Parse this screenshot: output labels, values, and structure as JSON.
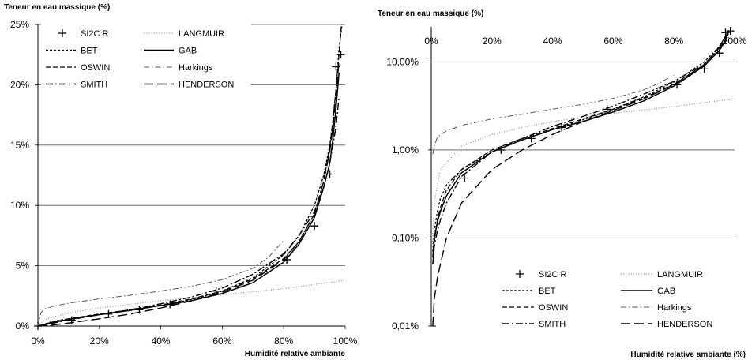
{
  "chart_data": [
    {
      "type": "line",
      "title": "",
      "ylabel": "Teneur en eau massique  (%)",
      "xlabel": "Humidité  relative ambiante",
      "x_ticks": [
        "0%",
        "20%",
        "40%",
        "60%",
        "80%",
        "100%"
      ],
      "y_ticks": [
        "0%",
        "5%",
        "10%",
        "15%",
        "20%",
        "25%"
      ],
      "xlim": [
        0,
        100
      ],
      "ylim": [
        0,
        25
      ],
      "yscale": "linear",
      "grid": "horizontal",
      "legend_position": "top-left",
      "legend": [
        {
          "name": "SI2C R",
          "style": "marker"
        },
        {
          "name": "LANGMUIR",
          "style": "dotted"
        },
        {
          "name": "BET",
          "style": "short-dash"
        },
        {
          "name": "GAB",
          "style": "solid"
        },
        {
          "name": "OSWIN",
          "style": "dash"
        },
        {
          "name": "Harkings",
          "style": "dash-dot-thin"
        },
        {
          "name": "SMITH",
          "style": "dash-dot"
        },
        {
          "name": "HENDERSON",
          "style": "long-dash"
        }
      ],
      "series": [
        {
          "name": "SI2C R",
          "style": "marker",
          "x": [
            0,
            11,
            23,
            33,
            43,
            58,
            81,
            90,
            95,
            97,
            98.6
          ],
          "y": [
            0,
            0.48,
            1.0,
            1.35,
            1.8,
            2.9,
            5.5,
            8.3,
            12.6,
            21.5,
            22.5
          ]
        },
        {
          "name": "LANGMUIR",
          "style": "dotted",
          "x": [
            0,
            1,
            3,
            10,
            20,
            30,
            40,
            50,
            60,
            70,
            80,
            90,
            100
          ],
          "y": [
            0,
            0.25,
            0.6,
            1.1,
            1.5,
            1.8,
            2.1,
            2.35,
            2.6,
            2.85,
            3.1,
            3.45,
            3.8
          ]
        },
        {
          "name": "BET",
          "style": "short-dash",
          "x": [
            0,
            5,
            10,
            20,
            30,
            40,
            50,
            60,
            70,
            80,
            85,
            90,
            93,
            95,
            96,
            97,
            98,
            99
          ],
          "y": [
            0,
            0.4,
            0.6,
            0.95,
            1.3,
            1.7,
            2.2,
            2.9,
            4.0,
            5.9,
            7.5,
            10.0,
            12.5,
            15.0,
            17.0,
            19.5,
            23.0,
            25.0
          ]
        },
        {
          "name": "GAB",
          "style": "solid",
          "x": [
            0,
            5,
            10,
            20,
            30,
            40,
            50,
            60,
            70,
            80,
            85,
            90,
            93,
            95,
            96,
            97,
            98
          ],
          "y": [
            0,
            0.3,
            0.55,
            0.95,
            1.3,
            1.7,
            2.1,
            2.7,
            3.6,
            5.3,
            6.8,
            9.0,
            11.5,
            13.5,
            15.5,
            18.0,
            21.0
          ]
        },
        {
          "name": "OSWIN",
          "style": "dash",
          "x": [
            0,
            5,
            10,
            20,
            30,
            40,
            50,
            60,
            70,
            80,
            85,
            90,
            93,
            95,
            96,
            97,
            98,
            98.8
          ],
          "y": [
            0,
            0.35,
            0.6,
            1.0,
            1.35,
            1.75,
            2.25,
            2.9,
            3.9,
            5.6,
            7.0,
            9.3,
            12.0,
            14.8,
            17.0,
            19.5,
            22.5,
            25.0
          ]
        },
        {
          "name": "Harkings",
          "style": "dash-dot-thin",
          "x": [
            0,
            1,
            2,
            5,
            10,
            20,
            30,
            40,
            50,
            60,
            70,
            75,
            80
          ],
          "y": [
            0,
            1.1,
            1.4,
            1.65,
            1.9,
            2.25,
            2.55,
            2.9,
            3.3,
            3.85,
            4.8,
            5.7,
            7.1
          ]
        },
        {
          "name": "SMITH",
          "style": "dash-dot",
          "x": [
            0,
            5,
            10,
            20,
            30,
            40,
            50,
            60,
            70,
            80,
            85,
            90,
            93,
            95,
            97,
            98
          ],
          "y": [
            0,
            0.25,
            0.5,
            0.95,
            1.35,
            1.85,
            2.4,
            3.15,
            4.3,
            6.0,
            7.5,
            9.5,
            11.5,
            13.5,
            16.5,
            19.0
          ]
        },
        {
          "name": "HENDERSON",
          "style": "long-dash",
          "x": [
            0,
            5,
            10,
            20,
            30,
            40,
            50,
            60,
            70,
            80,
            85,
            90,
            93,
            95,
            96,
            97,
            98
          ],
          "y": [
            0,
            0.1,
            0.25,
            0.6,
            1.0,
            1.5,
            2.1,
            2.8,
            3.8,
            5.5,
            7.0,
            9.3,
            12.0,
            14.5,
            16.5,
            19.0,
            22.0
          ]
        }
      ]
    },
    {
      "type": "line",
      "title": "",
      "ylabel": "Teneur en eau massique  (%)",
      "xlabel": "Humidité relative ambiante  (%)",
      "x_ticks": [
        "0%",
        "20%",
        "40%",
        "60%",
        "80%",
        "100%"
      ],
      "y_ticks": [
        "0,01%",
        "0,10%",
        "1,00%",
        "10,00%"
      ],
      "xlim": [
        0,
        100
      ],
      "ylim": [
        0.01,
        25
      ],
      "yscale": "log",
      "grid": "horizontal",
      "legend_position": "bottom-right",
      "legend": [
        {
          "name": "SI2C R",
          "style": "marker"
        },
        {
          "name": "LANGMUIR",
          "style": "dotted"
        },
        {
          "name": "BET",
          "style": "short-dash"
        },
        {
          "name": "GAB",
          "style": "solid"
        },
        {
          "name": "OSWIN",
          "style": "dash"
        },
        {
          "name": "Harkings",
          "style": "dash-dot-thin"
        },
        {
          "name": "SMITH",
          "style": "dash-dot"
        },
        {
          "name": "HENDERSON",
          "style": "long-dash"
        }
      ],
      "series": [
        {
          "name": "SI2C R",
          "style": "marker",
          "x": [
            11,
            23,
            33,
            43,
            58,
            81,
            90,
            95,
            97,
            98.6
          ],
          "y": [
            0.48,
            1.0,
            1.35,
            1.8,
            2.9,
            5.5,
            8.3,
            12.6,
            21.5,
            22.5
          ]
        },
        {
          "name": "LANGMUIR",
          "style": "dotted",
          "x": [
            0.3,
            1,
            3,
            10,
            20,
            30,
            40,
            50,
            60,
            70,
            80,
            90,
            100
          ],
          "y": [
            0.08,
            0.25,
            0.6,
            1.1,
            1.5,
            1.8,
            2.1,
            2.35,
            2.6,
            2.85,
            3.1,
            3.45,
            3.8
          ]
        },
        {
          "name": "BET",
          "style": "short-dash",
          "x": [
            0.5,
            1,
            2,
            3,
            5,
            10,
            20,
            30,
            40,
            50,
            60,
            70,
            80,
            90,
            95,
            97,
            99
          ],
          "y": [
            0.07,
            0.12,
            0.2,
            0.28,
            0.4,
            0.6,
            0.95,
            1.3,
            1.7,
            2.2,
            2.9,
            4.0,
            5.9,
            10.0,
            15.0,
            19.5,
            25.0
          ]
        },
        {
          "name": "GAB",
          "style": "solid",
          "x": [
            0.5,
            1,
            2,
            3,
            5,
            10,
            20,
            30,
            40,
            50,
            60,
            70,
            80,
            90,
            95,
            97,
            98
          ],
          "y": [
            0.06,
            0.1,
            0.15,
            0.2,
            0.3,
            0.55,
            0.95,
            1.3,
            1.7,
            2.1,
            2.7,
            3.6,
            5.3,
            9.0,
            13.5,
            18.0,
            21.0
          ]
        },
        {
          "name": "OSWIN",
          "style": "dash",
          "x": [
            0.5,
            1,
            2,
            3,
            5,
            10,
            20,
            30,
            40,
            50,
            60,
            70,
            80,
            90,
            95,
            98,
            98.8
          ],
          "y": [
            0.05,
            0.09,
            0.16,
            0.22,
            0.35,
            0.6,
            1.0,
            1.35,
            1.75,
            2.25,
            2.9,
            3.9,
            5.6,
            9.3,
            14.8,
            22.5,
            25.0
          ]
        },
        {
          "name": "Harkings",
          "style": "dash-dot-thin",
          "x": [
            0.5,
            1,
            2,
            5,
            10,
            20,
            30,
            40,
            50,
            60,
            70,
            75,
            80
          ],
          "y": [
            0.9,
            1.1,
            1.4,
            1.65,
            1.9,
            2.25,
            2.55,
            2.9,
            3.3,
            3.85,
            4.8,
            5.7,
            7.1
          ]
        },
        {
          "name": "SMITH",
          "style": "dash-dot",
          "x": [
            0.5,
            1,
            2,
            3,
            5,
            10,
            20,
            30,
            40,
            50,
            60,
            70,
            80,
            90,
            95,
            98
          ],
          "y": [
            0.05,
            0.08,
            0.12,
            0.16,
            0.25,
            0.5,
            0.95,
            1.35,
            1.85,
            2.4,
            3.15,
            4.3,
            6.0,
            9.5,
            13.5,
            19.0
          ]
        },
        {
          "name": "HENDERSON",
          "style": "long-dash",
          "x": [
            0.5,
            1,
            2,
            3,
            5,
            10,
            20,
            30,
            40,
            50,
            60,
            70,
            80,
            90,
            95,
            97,
            98
          ],
          "y": [
            0.01,
            0.02,
            0.035,
            0.05,
            0.1,
            0.25,
            0.6,
            1.0,
            1.5,
            2.1,
            2.8,
            3.8,
            5.5,
            9.3,
            14.5,
            19.0,
            22.0
          ]
        }
      ]
    }
  ]
}
